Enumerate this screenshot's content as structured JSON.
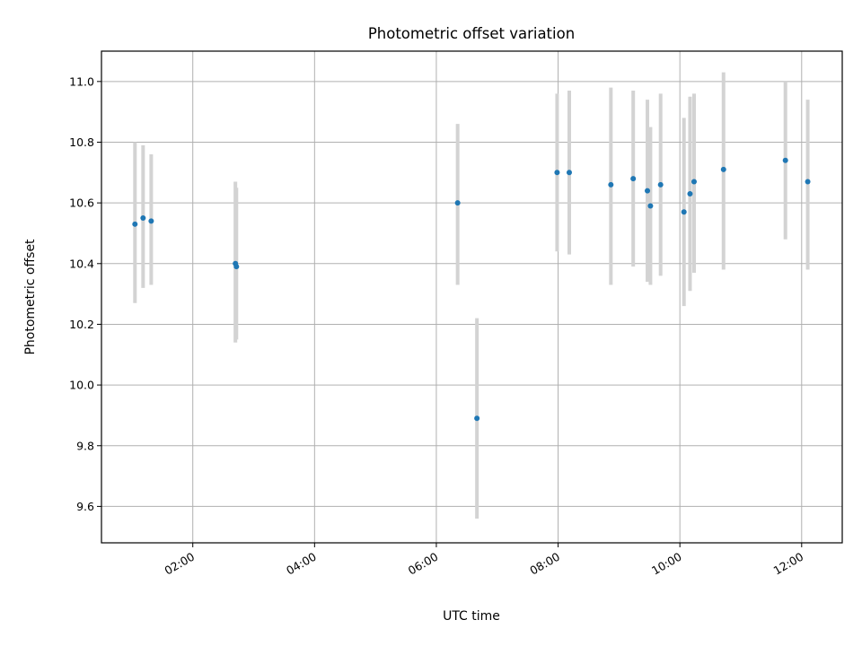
{
  "chart_data": {
    "type": "scatter",
    "title": "Photometric offset variation",
    "xlabel": "UTC time",
    "ylabel": "Photometric offset",
    "x_axis_type": "time",
    "xlim": [
      "00:30",
      "12:40"
    ],
    "ylim": [
      9.48,
      11.1
    ],
    "xticks": [
      "02:00",
      "04:00",
      "06:00",
      "08:00",
      "10:00",
      "12:00"
    ],
    "yticks": [
      9.6,
      9.8,
      10.0,
      10.2,
      10.4,
      10.6,
      10.8,
      11.0
    ],
    "yticklabels": [
      "9.6",
      "9.8",
      "10.0",
      "10.2",
      "10.4",
      "10.6",
      "10.8",
      "11.0"
    ],
    "grid": true,
    "marker_color": "#1f77b4",
    "errorbar_color": "#d3d3d3",
    "points": [
      {
        "time": "01:03",
        "y": 10.53,
        "low": 10.27,
        "high": 10.8
      },
      {
        "time": "01:11",
        "y": 10.55,
        "low": 10.32,
        "high": 10.79
      },
      {
        "time": "01:19",
        "y": 10.54,
        "low": 10.33,
        "high": 10.76
      },
      {
        "time": "02:42",
        "y": 10.4,
        "low": 10.14,
        "high": 10.67
      },
      {
        "time": "02:43",
        "y": 10.39,
        "low": 10.15,
        "high": 10.65
      },
      {
        "time": "06:21",
        "y": 10.6,
        "low": 10.33,
        "high": 10.86
      },
      {
        "time": "06:40",
        "y": 9.89,
        "low": 9.56,
        "high": 10.22
      },
      {
        "time": "07:59",
        "y": 10.7,
        "low": 10.44,
        "high": 10.96
      },
      {
        "time": "08:11",
        "y": 10.7,
        "low": 10.43,
        "high": 10.97
      },
      {
        "time": "08:52",
        "y": 10.66,
        "low": 10.33,
        "high": 10.98
      },
      {
        "time": "09:14",
        "y": 10.68,
        "low": 10.39,
        "high": 10.97
      },
      {
        "time": "09:28",
        "y": 10.64,
        "low": 10.34,
        "high": 10.94
      },
      {
        "time": "09:31",
        "y": 10.59,
        "low": 10.33,
        "high": 10.85
      },
      {
        "time": "09:41",
        "y": 10.66,
        "low": 10.36,
        "high": 10.96
      },
      {
        "time": "10:04",
        "y": 10.57,
        "low": 10.26,
        "high": 10.88
      },
      {
        "time": "10:10",
        "y": 10.63,
        "low": 10.31,
        "high": 10.95
      },
      {
        "time": "10:14",
        "y": 10.67,
        "low": 10.37,
        "high": 10.96
      },
      {
        "time": "10:43",
        "y": 10.71,
        "low": 10.38,
        "high": 11.03
      },
      {
        "time": "11:44",
        "y": 10.74,
        "low": 10.48,
        "high": 11.0
      },
      {
        "time": "12:06",
        "y": 10.67,
        "low": 10.38,
        "high": 10.94
      }
    ]
  }
}
